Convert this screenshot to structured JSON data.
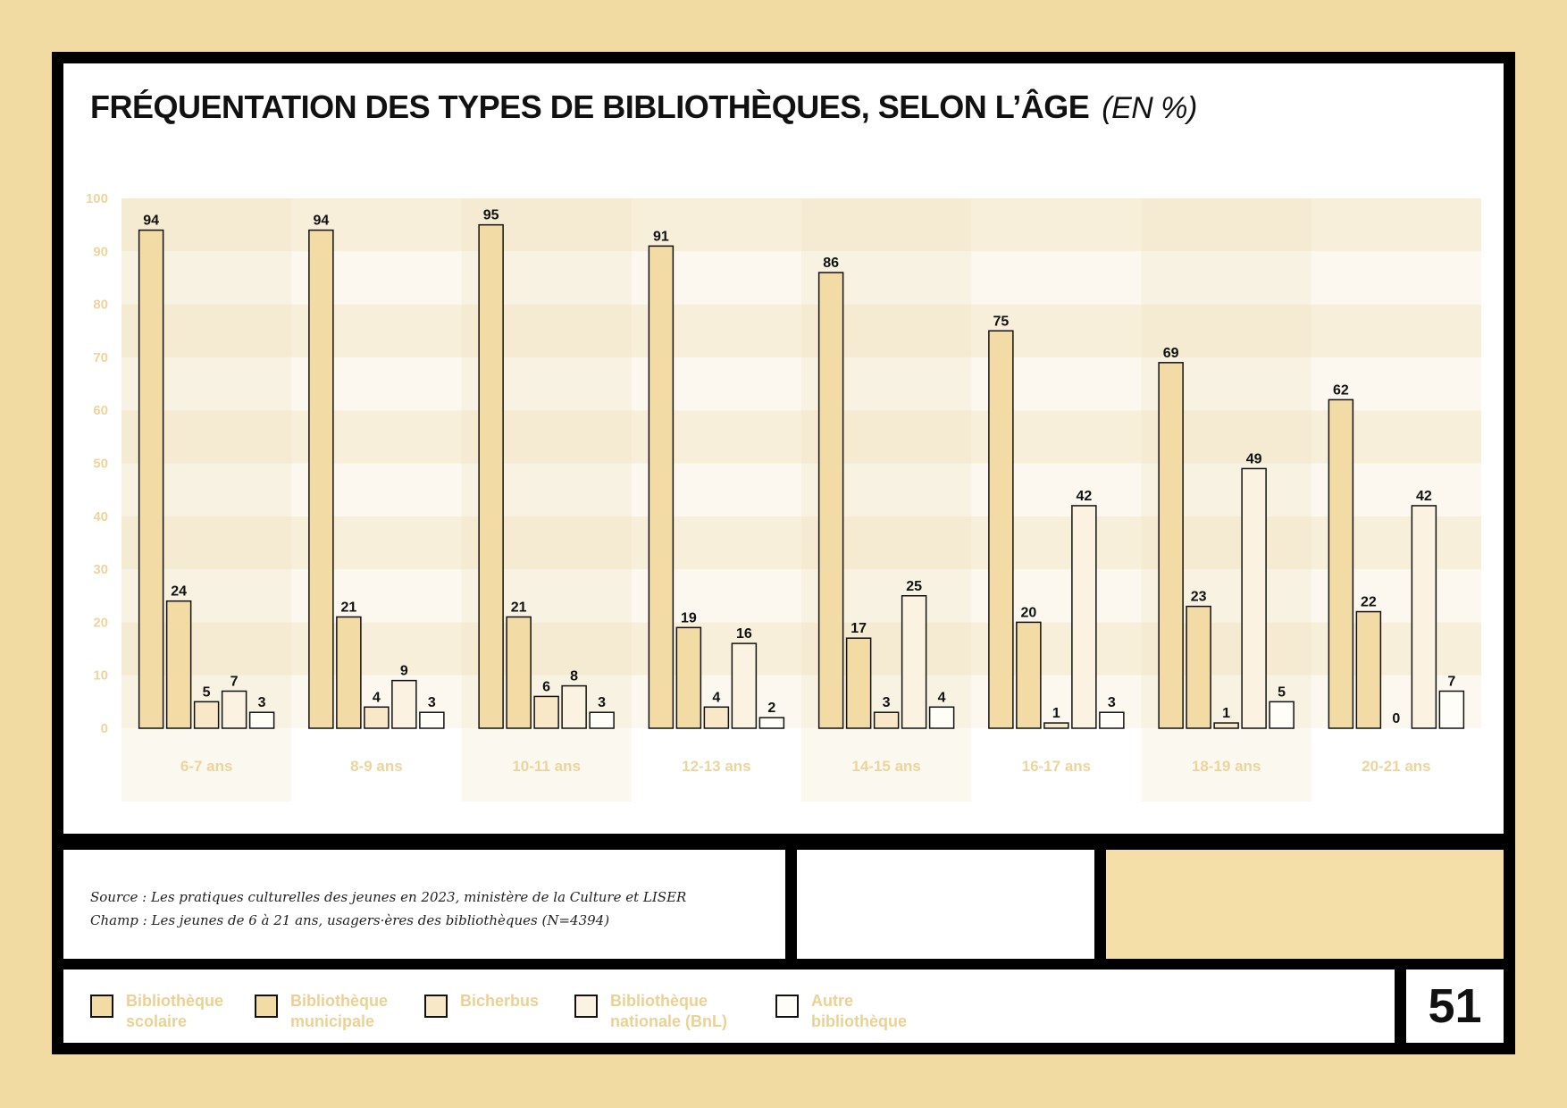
{
  "title": "FRÉQUENTATION DES TYPES DE BIBLIOTHÈQUES, SELON L’ÂGE",
  "title_unit": "(EN %)",
  "source": {
    "line1": "Source : Les pratiques culturelles des jeunes en 2023, ministère de la Culture et LISER",
    "line2": "Champ : Les jeunes de 6 à 21 ans, usagers·ères des bibliothèques (N=4394)"
  },
  "page_number": "51",
  "legend": [
    {
      "label": "Bibliothèque\n scolaire",
      "color": "#f3dba5"
    },
    {
      "label": "Bibliothèque\nmunicipale",
      "color": "#f3dba5"
    },
    {
      "label": "Bicherbus",
      "color": "#f8e8c8"
    },
    {
      "label": "Bibliothèque\nnationale (BnL)",
      "color": "#fbf2e2"
    },
    {
      "label": "Autre\nbibliothèque",
      "color": "#fffdf8"
    }
  ],
  "chart_data": {
    "type": "bar",
    "categories": [
      "6-7 ans",
      "8-9 ans",
      "10-11 ans",
      "12-13 ans",
      "14-15 ans",
      "16-17 ans",
      "18-19 ans",
      "20-21 ans"
    ],
    "series": [
      {
        "name": "Bibliothèque scolaire",
        "values": [
          94,
          94,
          95,
          91,
          86,
          75,
          69,
          62
        ],
        "color": "#f3dba5"
      },
      {
        "name": "Bibliothèque municipale",
        "values": [
          24,
          21,
          21,
          19,
          17,
          20,
          23,
          22
        ],
        "color": "#f3dba5"
      },
      {
        "name": "Bicherbus",
        "values": [
          5,
          4,
          6,
          4,
          3,
          1,
          1,
          0
        ],
        "color": "#f8e8c8"
      },
      {
        "name": "Bibliothèque nationale (BnL)",
        "values": [
          7,
          9,
          8,
          16,
          25,
          42,
          49,
          42
        ],
        "color": "#fbf2e2"
      },
      {
        "name": "Autre bibliothèque",
        "values": [
          3,
          3,
          3,
          2,
          4,
          3,
          5,
          7
        ],
        "color": "#fffdf8"
      }
    ],
    "yticks": [
      "0",
      "10",
      "20",
      "30",
      "40",
      "50",
      "60",
      "70",
      "80",
      "90",
      "100"
    ],
    "ylim": [
      0,
      100
    ],
    "grid": "alternating horizontal bands",
    "legend_position": "bottom"
  }
}
